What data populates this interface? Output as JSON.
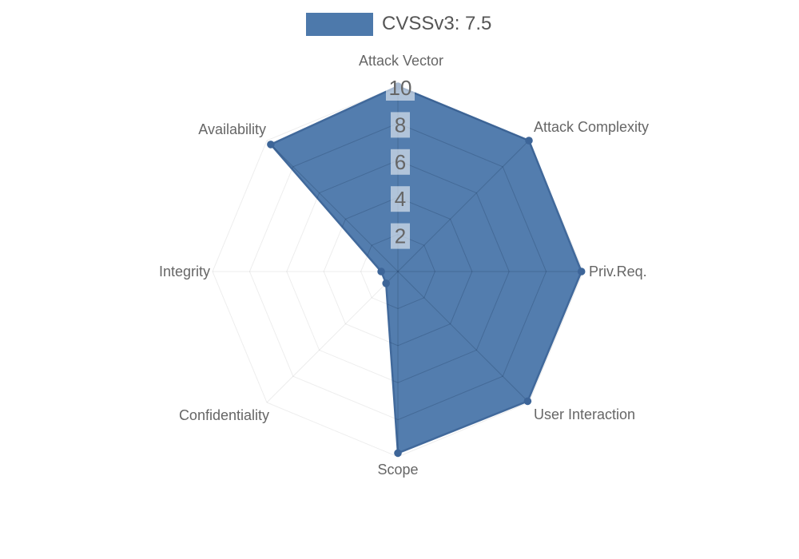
{
  "page": {
    "background": "#ffffff"
  },
  "legend": {
    "label": "CVSSv3: 7.5",
    "swatch_color": "#4d79ab"
  },
  "chart_data": {
    "type": "radar",
    "title": "",
    "categories": [
      "Attack Vector",
      "Attack Complexity",
      "Priv.Req.",
      "User Interaction",
      "Scope",
      "Confidentiality",
      "Integrity",
      "Availability"
    ],
    "series": [
      {
        "name": "CVSSv3: 7.5",
        "values": [
          10,
          10,
          9.9,
          9.9,
          9.8,
          0.9,
          0.9,
          9.7
        ]
      }
    ],
    "rmin": 0,
    "rmax": 10,
    "ticks": [
      2,
      4,
      6,
      8,
      10
    ],
    "grid": true,
    "legend_position": "top",
    "colors": {
      "fill": "#4d79ab",
      "border": "#41699b",
      "point": "#3d6598",
      "grid_line": "rgba(0,0,0,0.07)",
      "grid_line_over_fill": "rgba(12,28,58,0.20)",
      "tick_text": "#666666",
      "tick_backdrop": "rgba(255,255,255,0.55)",
      "label_text": "#666666",
      "legend_text": "#555555"
    }
  }
}
